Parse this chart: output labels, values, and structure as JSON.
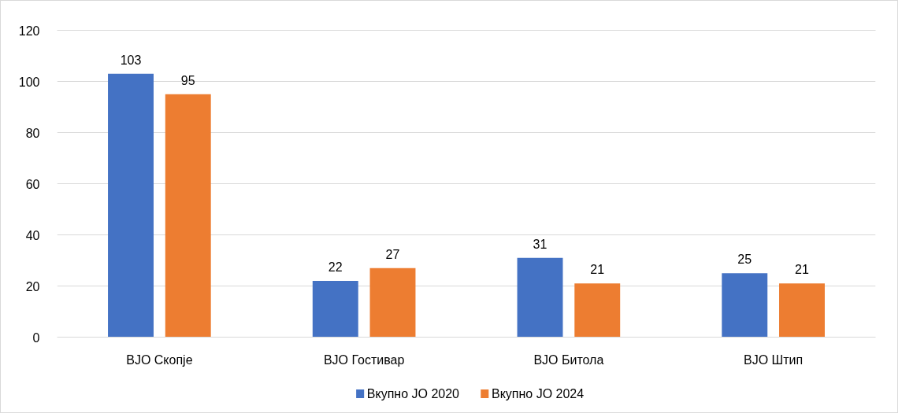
{
  "chart_data": {
    "type": "bar",
    "categories": [
      "ВЈО Скопје",
      "ВЈО Гостивар",
      "ВЈО Битола",
      "ВЈО Штип"
    ],
    "series": [
      {
        "name": "Вкупно ЈО 2020",
        "color": "#4472c4",
        "values": [
          103,
          22,
          31,
          25
        ]
      },
      {
        "name": "Вкупно ЈО 2024",
        "color": "#ed7d31",
        "values": [
          95,
          27,
          21,
          21
        ]
      }
    ],
    "ylim": [
      0,
      120
    ],
    "yticks": [
      0,
      20,
      40,
      60,
      80,
      100,
      120
    ],
    "grid": "y",
    "legend": "bottom",
    "data_labels": true
  }
}
